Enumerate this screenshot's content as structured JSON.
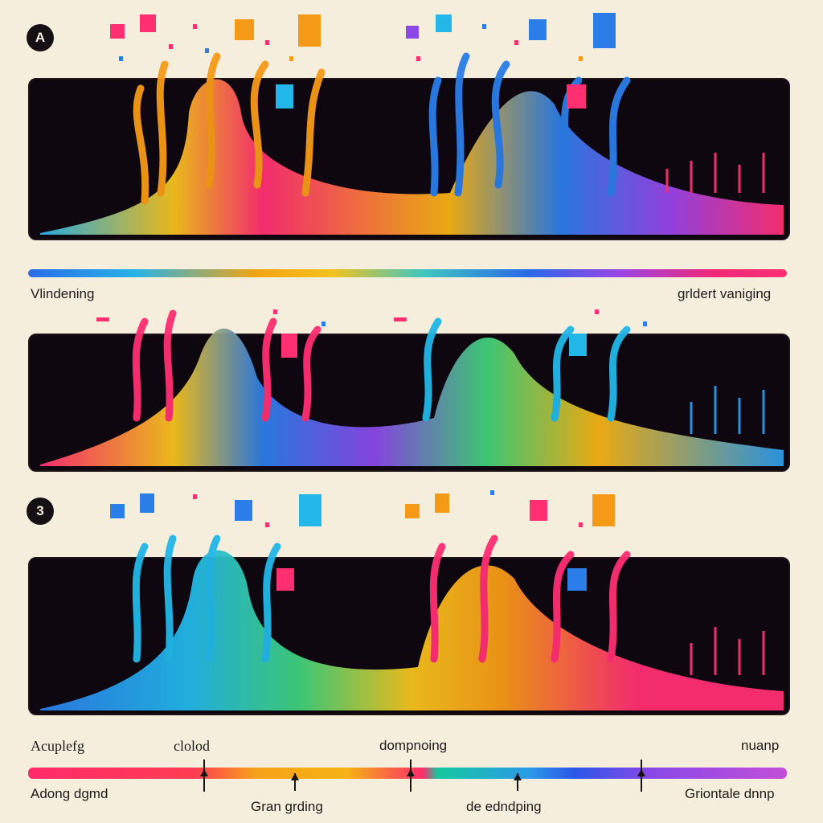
{
  "badges": {
    "top": "A",
    "bottom": "3"
  },
  "middle_bar": {
    "left_label": "Vlindening",
    "right_label": "grldert vaniging"
  },
  "bottom_bar": {
    "top_labels": [
      "Acuplefg",
      "clolod",
      "dompnoing",
      "nuanp"
    ],
    "bottom_labels": [
      "Adong dgmd",
      "Gran grding",
      "de edndping",
      "Griontale dnnp"
    ]
  },
  "colors": {
    "background": "#f6eedd",
    "panel": "#0e0710",
    "pink": "#ff2d6f",
    "yellow": "#f7c21c",
    "orange": "#f59a17",
    "blue": "#2b7de8",
    "cyan": "#22b7e8",
    "purple": "#8a48e8",
    "green": "#3fd07a"
  },
  "icons": [
    "circle-badge-icon",
    "arrow-tick-icon"
  ]
}
